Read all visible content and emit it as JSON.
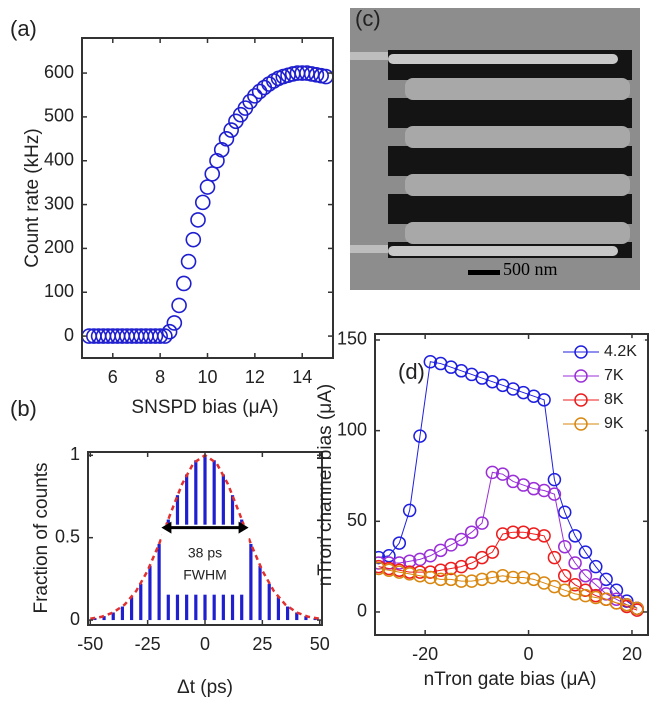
{
  "chart_data": [
    {
      "type": "scatter",
      "panel_label": "(a)",
      "x_label": "SNSPD bias (μA)",
      "y_label": "Count rate (kHz)",
      "color": "#1f1fd0",
      "x": [
        5,
        5.2,
        5.4,
        5.6,
        5.8,
        6,
        6.2,
        6.4,
        6.6,
        6.8,
        7,
        7.2,
        7.4,
        7.6,
        7.8,
        8,
        8.2,
        8.4,
        8.6,
        8.8,
        9,
        9.2,
        9.4,
        9.6,
        9.8,
        10,
        10.2,
        10.4,
        10.6,
        10.8,
        11,
        11.2,
        11.4,
        11.6,
        11.8,
        12,
        12.2,
        12.4,
        12.6,
        12.8,
        13,
        13.2,
        13.4,
        13.6,
        13.8,
        14,
        14.2,
        14.4,
        14.6,
        14.8,
        15
      ],
      "values": [
        0,
        0,
        0,
        0,
        0,
        0,
        0,
        0,
        0,
        0,
        0,
        0,
        0,
        0,
        0,
        0,
        0,
        10,
        30,
        70,
        120,
        170,
        220,
        265,
        305,
        340,
        370,
        400,
        425,
        450,
        470,
        490,
        505,
        520,
        535,
        548,
        558,
        567,
        575,
        582,
        588,
        592,
        595,
        598,
        600,
        600,
        600,
        598,
        596,
        594,
        592
      ],
      "xlim": [
        4.7,
        15.3
      ],
      "xticks": [
        6,
        8,
        10,
        12,
        14
      ],
      "ylim": [
        -50,
        680
      ],
      "yticks": [
        0,
        100,
        200,
        300,
        400,
        500,
        600
      ]
    },
    {
      "type": "bar",
      "panel_label": "(b)",
      "x_label": "Δt (ps)",
      "y_label": "Fraction of counts",
      "color": "#1f1fd0",
      "x": [
        -48,
        -44,
        -40,
        -36,
        -32,
        -28,
        -24,
        -20,
        -16,
        -12,
        -8,
        -4,
        0,
        4,
        8,
        12,
        16,
        20,
        24,
        28,
        32,
        36,
        40,
        44,
        48
      ],
      "values": [
        0.012,
        0.024,
        0.046,
        0.082,
        0.139,
        0.22,
        0.329,
        0.462,
        0.61,
        0.758,
        0.884,
        0.97,
        1,
        0.97,
        0.884,
        0.758,
        0.61,
        0.462,
        0.329,
        0.22,
        0.139,
        0.082,
        0.046,
        0.024,
        0.012
      ],
      "fit": {
        "color": "#e03030",
        "x": [
          -50,
          -45,
          -40,
          -35,
          -30,
          -25,
          -20,
          -15,
          -10,
          -5,
          0,
          5,
          10,
          15,
          20,
          25,
          30,
          35,
          40,
          45,
          50
        ],
        "values": [
          0.008,
          0.02,
          0.046,
          0.094,
          0.176,
          0.3,
          0.462,
          0.648,
          0.825,
          0.953,
          1,
          0.953,
          0.825,
          0.648,
          0.462,
          0.3,
          0.176,
          0.094,
          0.046,
          0.02,
          0.008
        ]
      },
      "annotations": [
        "38 ps",
        "FWHM"
      ],
      "xlim": [
        -51,
        51
      ],
      "xticks": [
        -50,
        -25,
        0,
        25,
        50
      ],
      "ylim": [
        -0.03,
        1.02
      ],
      "yticks": [
        0,
        0.5,
        1
      ]
    },
    {
      "type": "line",
      "panel_label": "(d)",
      "x_label": "nTron gate bias (μA)",
      "y_label": "nTron channel bias (μA)",
      "legend": "upper right",
      "x": [
        -29,
        -27,
        -25,
        -23,
        -21,
        -19,
        -17,
        -15,
        -13,
        -11,
        -9,
        -7,
        -5,
        -3,
        -1,
        1,
        3,
        5,
        7,
        9,
        11,
        13,
        15,
        17,
        19,
        21
      ],
      "series": [
        {
          "name": "4.2K",
          "color": "#1f1fe0",
          "values": [
            30,
            31,
            38,
            56,
            97,
            138,
            137,
            135,
            133,
            131,
            129,
            127,
            125,
            123,
            121,
            119,
            117,
            73,
            55,
            42,
            33,
            25,
            18,
            12,
            6,
            2
          ]
        },
        {
          "name": "7K",
          "color": "#9a2fd8",
          "values": [
            27,
            27,
            27,
            28,
            29,
            31,
            34,
            37,
            40,
            44,
            49,
            77,
            76,
            72,
            70,
            68,
            67,
            65,
            36,
            27,
            20,
            15,
            10,
            7,
            4,
            2
          ]
        },
        {
          "name": "8K",
          "color": "#ee1c1c",
          "values": [
            25,
            24,
            23,
            22,
            22,
            22,
            23,
            24,
            25,
            27,
            30,
            33,
            43,
            44,
            44,
            43,
            42,
            30,
            20,
            15,
            12,
            9,
            7,
            5,
            3,
            1
          ]
        },
        {
          "name": "9K",
          "color": "#d9870f",
          "values": [
            24,
            23,
            22,
            21,
            20,
            19,
            18,
            18,
            17,
            17,
            18,
            19,
            20,
            19,
            19,
            18,
            16,
            14,
            12,
            10,
            9,
            8,
            7,
            5,
            4,
            2
          ]
        }
      ],
      "xlim": [
        -29.7,
        23.1
      ],
      "xticks": [
        -20,
        0,
        20
      ],
      "ylim": [
        -12.7,
        153.3
      ],
      "yticks": [
        0,
        50,
        100,
        150
      ]
    }
  ],
  "panel_c": {
    "label": "(c)",
    "scale_bar": "500 nm"
  }
}
